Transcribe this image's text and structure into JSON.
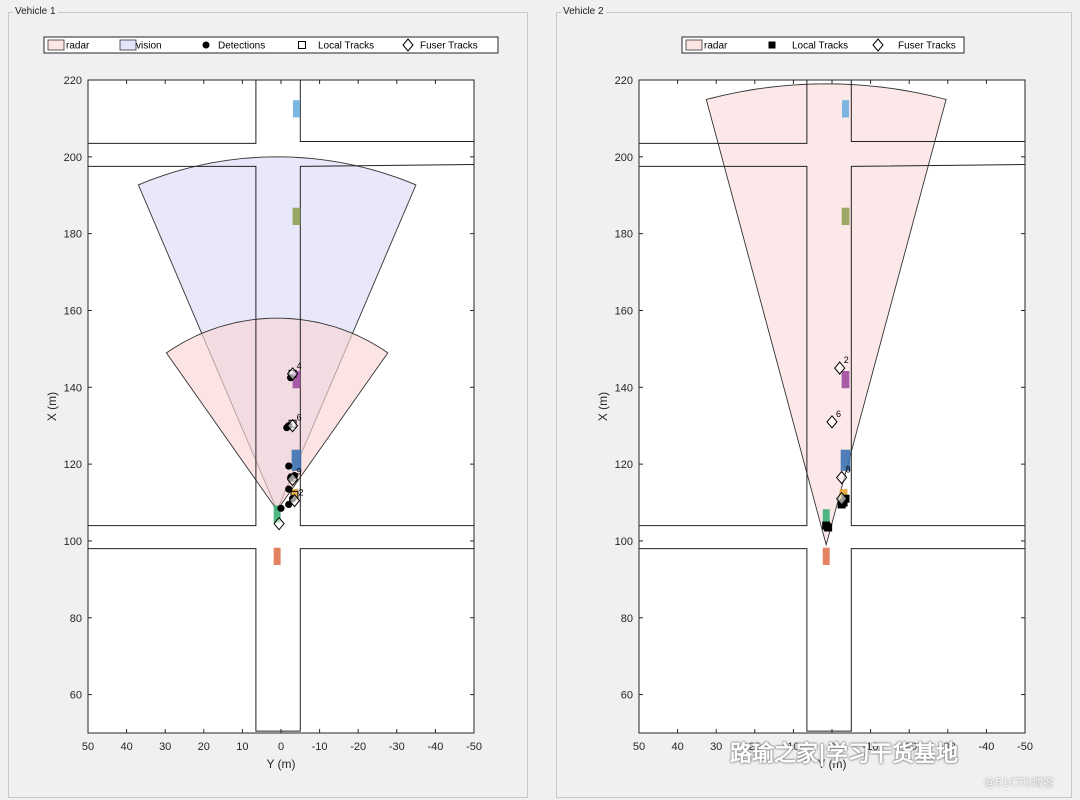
{
  "panels": [
    {
      "id": "vehicle-1",
      "title": "Vehicle 1",
      "legend": [
        {
          "label": "radar",
          "symbol": "patch",
          "fill": "#fde5e3"
        },
        {
          "label": "vision",
          "symbol": "patch",
          "fill": "#e3e3fb"
        },
        {
          "label": "Detections",
          "symbol": "filled-circle"
        },
        {
          "label": "Local Tracks",
          "symbol": "open-square"
        },
        {
          "label": "Fuser Tracks",
          "symbol": "open-diamond"
        }
      ]
    },
    {
      "id": "vehicle-2",
      "title": "Vehicle 2",
      "legend": [
        {
          "label": "radar",
          "symbol": "patch",
          "fill": "#fde5e3"
        },
        {
          "label": "Local Tracks",
          "symbol": "filled-square"
        },
        {
          "label": "Fuser Tracks",
          "symbol": "open-diamond"
        }
      ]
    }
  ],
  "chart_data": [
    {
      "type": "scatter",
      "panel": "vehicle-1",
      "title": "",
      "xlabel": "Y (m)",
      "ylabel": "X (m)",
      "xlim": [
        50,
        -50
      ],
      "ylim": [
        50,
        220
      ],
      "xticks": [
        "50",
        "40",
        "30",
        "20",
        "10",
        "0",
        "-10",
        "-20",
        "-30",
        "-40",
        "-50"
      ],
      "yticks": [
        "60",
        "80",
        "100",
        "120",
        "140",
        "160",
        "180",
        "200",
        "220"
      ],
      "grid": false,
      "legend_position": "top",
      "roads": {
        "lines": [
          [
            [
              50,
              203.5
            ],
            [
              6.5,
              203.5
            ],
            [
              6.5,
              220
            ]
          ],
          [
            [
              -5,
              220
            ],
            [
              -5,
              204
            ],
            [
              -50,
              204
            ]
          ],
          [
            [
              50,
              197.5
            ],
            [
              6.5,
              197.5
            ],
            [
              6.5,
              104
            ],
            [
              50,
              104
            ]
          ],
          [
            [
              -50,
              198
            ],
            [
              -5,
              197.5
            ],
            [
              -5,
              104
            ],
            [
              -50,
              104
            ]
          ],
          [
            [
              50,
              98
            ],
            [
              6.5,
              98
            ],
            [
              6.5,
              50.5
            ],
            [
              -5,
              50.5
            ],
            [
              -5,
              98
            ],
            [
              -50,
              98
            ]
          ]
        ]
      },
      "sensor_coverage": [
        {
          "name": "vision",
          "apex": [
            1,
            108
          ],
          "range": 92,
          "half_angle_deg": 23,
          "fill": "#dcdcf8"
        },
        {
          "name": "radar",
          "apex": [
            1,
            108
          ],
          "range": 50,
          "half_angle_deg": 35,
          "fill": "#f9d6d4"
        }
      ],
      "vehicles": [
        {
          "y": -4,
          "x": 212.5,
          "w": 1.8,
          "h": 4.5,
          "color": "#6bb0e0"
        },
        {
          "y": -4,
          "x": 184.5,
          "w": 2,
          "h": 4.5,
          "color": "#8fa154"
        },
        {
          "y": -4,
          "x": 142,
          "w": 2,
          "h": 4.5,
          "color": "#9e4ca0"
        },
        {
          "y": -4,
          "x": 121,
          "w": 2.5,
          "h": 5.5,
          "color": "#3d72b4"
        },
        {
          "y": -3.5,
          "x": 112,
          "w": 2,
          "h": 3,
          "color": "#e6a33a"
        },
        {
          "y": 1,
          "x": 107,
          "w": 1.8,
          "h": 4.5,
          "color": "#3aaf74"
        },
        {
          "y": 1,
          "x": 96,
          "w": 1.8,
          "h": 4.5,
          "color": "#e07650"
        }
      ],
      "detections": [
        [
          -2.5,
          142.5
        ],
        [
          -2,
          130
        ],
        [
          -1.5,
          129.5
        ],
        [
          -2,
          119.5
        ],
        [
          -3.5,
          117
        ],
        [
          -2.5,
          116.5
        ],
        [
          -2,
          113.5
        ],
        [
          -3,
          111
        ],
        [
          -2,
          109.5
        ],
        [
          0,
          108.5
        ]
      ],
      "local_tracks": [
        [
          -3,
          143.5
        ],
        [
          -3,
          130.5
        ],
        [
          -3,
          116.5
        ],
        [
          -3.5,
          112
        ]
      ],
      "fuser_tracks": [
        {
          "y": -3,
          "x": 143.5,
          "label": "4"
        },
        {
          "y": -3,
          "x": 130,
          "label": "6"
        },
        {
          "y": -3,
          "x": 116,
          "label": "9"
        },
        {
          "y": -3.5,
          "x": 110.5,
          "label": "2"
        },
        {
          "y": 0.5,
          "x": 104.5,
          "label": ""
        }
      ]
    },
    {
      "type": "scatter",
      "panel": "vehicle-2",
      "title": "",
      "xlabel": "Y (m)",
      "ylabel": "X (m)",
      "xlim": [
        50,
        -50
      ],
      "ylim": [
        50,
        220
      ],
      "xticks": [
        "50",
        "40",
        "30",
        "20",
        "10",
        "0",
        "-10",
        "-20",
        "-30",
        "-40",
        "-50"
      ],
      "yticks": [
        "60",
        "80",
        "100",
        "120",
        "140",
        "160",
        "180",
        "200",
        "220"
      ],
      "grid": false,
      "legend_position": "top",
      "roads": {
        "lines": [
          [
            [
              50,
              203.5
            ],
            [
              6.5,
              203.5
            ],
            [
              6.5,
              220
            ]
          ],
          [
            [
              -5,
              220
            ],
            [
              -5,
              204
            ],
            [
              -50,
              204
            ]
          ],
          [
            [
              50,
              197.5
            ],
            [
              6.5,
              197.5
            ],
            [
              6.5,
              104
            ],
            [
              50,
              104
            ]
          ],
          [
            [
              -50,
              198
            ],
            [
              -5,
              197.5
            ],
            [
              -5,
              104
            ],
            [
              -50,
              104
            ]
          ],
          [
            [
              50,
              98
            ],
            [
              6.5,
              98
            ],
            [
              6.5,
              50.5
            ],
            [
              -5,
              50.5
            ],
            [
              -5,
              98
            ],
            [
              -50,
              98
            ]
          ]
        ]
      },
      "sensor_coverage": [
        {
          "name": "radar",
          "apex": [
            1.5,
            99
          ],
          "range": 120,
          "half_angle_deg": 15,
          "fill": "#fbdcdb"
        }
      ],
      "vehicles": [
        {
          "y": -3.5,
          "x": 212.5,
          "w": 1.8,
          "h": 4.5,
          "color": "#6bb0e0"
        },
        {
          "y": -3.5,
          "x": 184.5,
          "w": 2,
          "h": 4.5,
          "color": "#8fa154"
        },
        {
          "y": -3.5,
          "x": 142,
          "w": 2,
          "h": 4.5,
          "color": "#9e4ca0"
        },
        {
          "y": -3.5,
          "x": 121,
          "w": 2.5,
          "h": 5.5,
          "color": "#3d72b4"
        },
        {
          "y": -3,
          "x": 112,
          "w": 2,
          "h": 3,
          "color": "#e6a33a"
        },
        {
          "y": 1.5,
          "x": 106,
          "w": 1.8,
          "h": 4.5,
          "color": "#3aaf74"
        },
        {
          "y": 1.5,
          "x": 96,
          "w": 1.8,
          "h": 4.5,
          "color": "#e07650"
        }
      ],
      "detections": [],
      "local_tracks": [
        [
          1.5,
          104
        ],
        [
          1,
          103.5
        ],
        [
          -3,
          110
        ],
        [
          -2.5,
          109.5
        ],
        [
          -3.5,
          111
        ]
      ],
      "fuser_tracks": [
        {
          "y": -2,
          "x": 145,
          "label": "2"
        },
        {
          "y": 0,
          "x": 131,
          "label": "6"
        },
        {
          "y": -2.5,
          "x": 116.5,
          "label": "8"
        },
        {
          "y": -2.5,
          "x": 111,
          "label": ""
        }
      ]
    }
  ],
  "watermark": {
    "main": "路瑜之家|学习干货基地",
    "sub": "@51CTO博客"
  }
}
